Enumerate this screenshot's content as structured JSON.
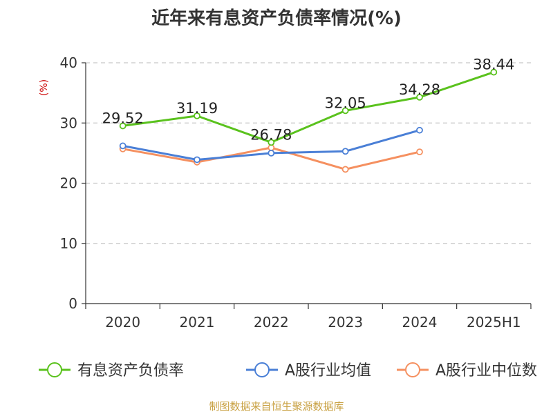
{
  "chart_data": {
    "type": "line",
    "title": "近年来有息资产负债率情况(%)",
    "ylabel": "(%)",
    "xlabel": "",
    "categories": [
      "2020",
      "2021",
      "2022",
      "2023",
      "2024",
      "2025H1"
    ],
    "y_ticks": [
      "0",
      "10",
      "20",
      "30",
      "40"
    ],
    "ylim": [
      0,
      40
    ],
    "grid": true,
    "legend_position": "bottom",
    "series": [
      {
        "name": "有息资产负债率",
        "color": "#5ac21d",
        "values": [
          29.52,
          31.19,
          26.78,
          32.05,
          34.28,
          38.44
        ],
        "data_labels": [
          "29.52",
          "31.19",
          "26.78",
          "32.05",
          "34.28",
          "38.44"
        ]
      },
      {
        "name": "A股行业均值",
        "color": "#4a7fd6",
        "values": [
          26.2,
          23.9,
          25.0,
          25.3,
          28.8,
          null
        ]
      },
      {
        "name": "A股行业中位数",
        "color": "#f59060",
        "values": [
          25.7,
          23.5,
          25.9,
          22.3,
          25.2,
          null
        ]
      }
    ]
  },
  "source_text": "制图数据来自恒生聚源数据库"
}
